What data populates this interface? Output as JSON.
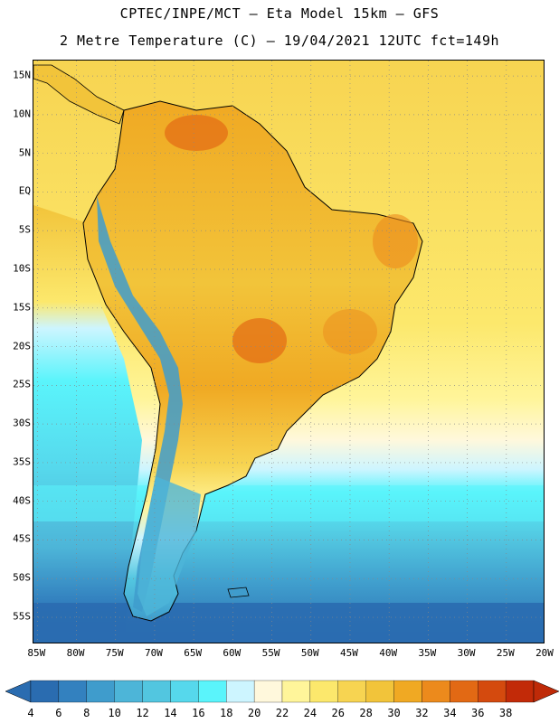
{
  "header": {
    "line1": "CPTEC/INPE/MCT –  Eta Model 15km – GFS",
    "line2": "2 Metre Temperature (C) – 19/04/2021 12UTC fct=149h"
  },
  "axes": {
    "lat_labels": [
      "15N",
      "10N",
      "5N",
      "EQ",
      "5S",
      "10S",
      "15S",
      "20S",
      "25S",
      "30S",
      "35S",
      "40S",
      "45S",
      "50S",
      "55S"
    ],
    "lat_values": [
      15,
      10,
      5,
      0,
      -5,
      -10,
      -15,
      -20,
      -25,
      -30,
      -35,
      -40,
      -45,
      -50,
      -55
    ],
    "lon_labels": [
      "85W",
      "80W",
      "75W",
      "70W",
      "65W",
      "60W",
      "55W",
      "50W",
      "45W",
      "40W",
      "35W",
      "30W",
      "25W",
      "20W"
    ],
    "lon_values": [
      -85,
      -80,
      -75,
      -70,
      -65,
      -60,
      -55,
      -50,
      -45,
      -40,
      -35,
      -30,
      -25,
      -20
    ],
    "lat_range": [
      -58.5,
      17
    ],
    "lon_range": [
      -85.5,
      -20
    ]
  },
  "colorbar": {
    "labels": [
      "4",
      "6",
      "8",
      "10",
      "12",
      "14",
      "16",
      "18",
      "20",
      "22",
      "24",
      "26",
      "28",
      "30",
      "32",
      "34",
      "36",
      "38"
    ],
    "colors": [
      "#2a6cb0",
      "#3381bf",
      "#3f9ccc",
      "#4db5d8",
      "#52c6e0",
      "#56d8ec",
      "#5af4fb",
      "#cdf5ff",
      "#fff8dc",
      "#fff59a",
      "#fce86c",
      "#f7d451",
      "#f2c43a",
      "#f0a923",
      "#ec8a1c",
      "#e26914",
      "#d44a0e",
      "#c22a08"
    ],
    "under_color": "#2a6cb0",
    "over_color": "#bf2a08"
  },
  "map": {
    "ocean_colors": {
      "warm": "#fce86c",
      "mild": "#fff59a",
      "cool": "#fff8dc",
      "cold1": "#cdf5ff",
      "cold2": "#5af4fb",
      "cold3": "#52c6e0",
      "cold4": "#3f9ccc",
      "cold5": "#2a6cb0"
    },
    "land_colors": {
      "hot": "#e26914",
      "warm": "#f0a923",
      "mild": "#f2c43a",
      "andes": "#3f9ccc",
      "andes_edge": "#56d8ec",
      "patagonia": "#52c6e0"
    }
  }
}
